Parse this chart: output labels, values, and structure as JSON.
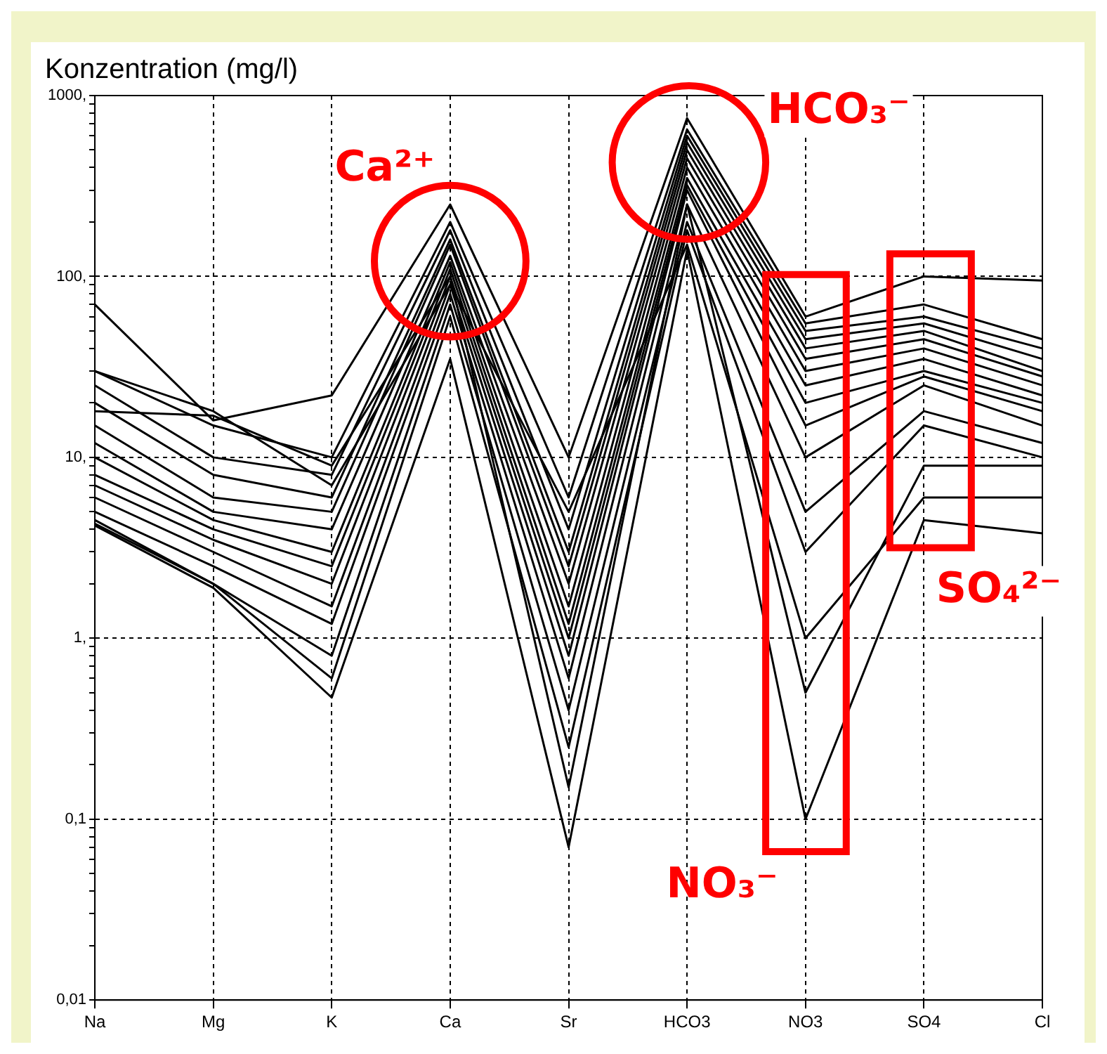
{
  "chart_data": {
    "type": "line",
    "ylabel": "Konzentration (mg/l)",
    "categories": [
      "Na",
      "Mg",
      "K",
      "Ca",
      "Sr",
      "HCO3",
      "NO3",
      "SO4",
      "Cl"
    ],
    "series": [
      {
        "color": "#000000",
        "values": [
          70,
          16,
          22,
          250,
          10,
          750,
          60,
          100,
          95
        ]
      },
      {
        "color": "#000000",
        "values": [
          30,
          15,
          10,
          200,
          6,
          650,
          55,
          70,
          45
        ]
      },
      {
        "color": "#000000",
        "values": [
          25,
          10,
          8,
          180,
          4,
          600,
          50,
          60,
          40
        ]
      },
      {
        "color": "#000000",
        "values": [
          20,
          8,
          6,
          160,
          3,
          550,
          45,
          55,
          35
        ]
      },
      {
        "color": "#000000",
        "values": [
          15,
          6,
          5,
          150,
          2.5,
          500,
          40,
          50,
          30
        ]
      },
      {
        "color": "#000000",
        "values": [
          12,
          5,
          4,
          130,
          2,
          450,
          35,
          45,
          28
        ]
      },
      {
        "color": "#000000",
        "values": [
          10,
          4.5,
          3,
          120,
          1.5,
          400,
          30,
          40,
          25
        ]
      },
      {
        "color": "#000000",
        "values": [
          8,
          4,
          2.5,
          110,
          1.2,
          350,
          25,
          35,
          22
        ]
      },
      {
        "color": "#000000",
        "values": [
          7,
          3.5,
          2,
          100,
          1,
          320,
          20,
          30,
          20
        ]
      },
      {
        "color": "#000000",
        "values": [
          6,
          3,
          1.5,
          90,
          0.8,
          300,
          15,
          28,
          18
        ]
      },
      {
        "color": "#000000",
        "values": [
          5,
          2.5,
          1.2,
          80,
          0.6,
          250,
          10,
          25,
          15
        ]
      },
      {
        "color": "#000000",
        "values": [
          4.5,
          2,
          0.8,
          70,
          0.4,
          200,
          5,
          18,
          12
        ]
      },
      {
        "color": "#000000",
        "values": [
          4.3,
          2,
          0.6,
          60,
          0.25,
          180,
          3,
          15,
          10
        ]
      },
      {
        "color": "#000000",
        "values": [
          4.2,
          1.9,
          0.47,
          35,
          0.07,
          140,
          0.1,
          4.5,
          3.8
        ]
      },
      {
        "color": "#000000",
        "values": [
          18,
          17,
          9,
          100,
          0.15,
          250,
          0.5,
          9,
          9
        ]
      },
      {
        "color": "#000000",
        "values": [
          30,
          18,
          7,
          90,
          5,
          150,
          1,
          6,
          6
        ]
      }
    ],
    "log": true,
    "ylim": [
      0.01,
      1000
    ],
    "yticks": [
      {
        "value": 0.01,
        "label": "0,01"
      },
      {
        "value": 0.02,
        "label": null
      },
      {
        "value": 0.03,
        "label": null
      },
      {
        "value": 0.04,
        "label": null
      },
      {
        "value": 0.05,
        "label": null
      },
      {
        "value": 0.06,
        "label": null
      },
      {
        "value": 0.07,
        "label": null
      },
      {
        "value": 0.08,
        "label": null
      },
      {
        "value": 0.09,
        "label": null
      },
      {
        "value": 0.1,
        "label": "0,1"
      },
      {
        "value": 0.2,
        "label": null
      },
      {
        "value": 0.3,
        "label": null
      },
      {
        "value": 0.4,
        "label": null
      },
      {
        "value": 0.5,
        "label": null
      },
      {
        "value": 0.6,
        "label": null
      },
      {
        "value": 0.7,
        "label": null
      },
      {
        "value": 0.8,
        "label": null
      },
      {
        "value": 0.9,
        "label": null
      },
      {
        "value": 1,
        "label": "1,"
      },
      {
        "value": 2,
        "label": null
      },
      {
        "value": 3,
        "label": null
      },
      {
        "value": 4,
        "label": null
      },
      {
        "value": 5,
        "label": null
      },
      {
        "value": 6,
        "label": null
      },
      {
        "value": 7,
        "label": null
      },
      {
        "value": 8,
        "label": null
      },
      {
        "value": 9,
        "label": null
      },
      {
        "value": 10,
        "label": "10,"
      },
      {
        "value": 20,
        "label": null
      },
      {
        "value": 30,
        "label": null
      },
      {
        "value": 40,
        "label": null
      },
      {
        "value": 50,
        "label": null
      },
      {
        "value": 60,
        "label": null
      },
      {
        "value": 70,
        "label": null
      },
      {
        "value": 80,
        "label": null
      },
      {
        "value": 90,
        "label": null
      },
      {
        "value": 100,
        "label": "100,"
      },
      {
        "value": 200,
        "label": null
      },
      {
        "value": 300,
        "label": null
      },
      {
        "value": 400,
        "label": null
      },
      {
        "value": 500,
        "label": null
      },
      {
        "value": 600,
        "label": null
      },
      {
        "value": 700,
        "label": null
      },
      {
        "value": 800,
        "label": null
      },
      {
        "value": 900,
        "label": null
      },
      {
        "value": 1000,
        "label": "1000,"
      }
    ],
    "grid": true,
    "legend": false,
    "marker": "none",
    "line_style": "solid",
    "annotations": [
      "Ca²⁺",
      "HCO₃⁻",
      "NO₃⁻",
      "SO₄²⁻"
    ]
  }
}
